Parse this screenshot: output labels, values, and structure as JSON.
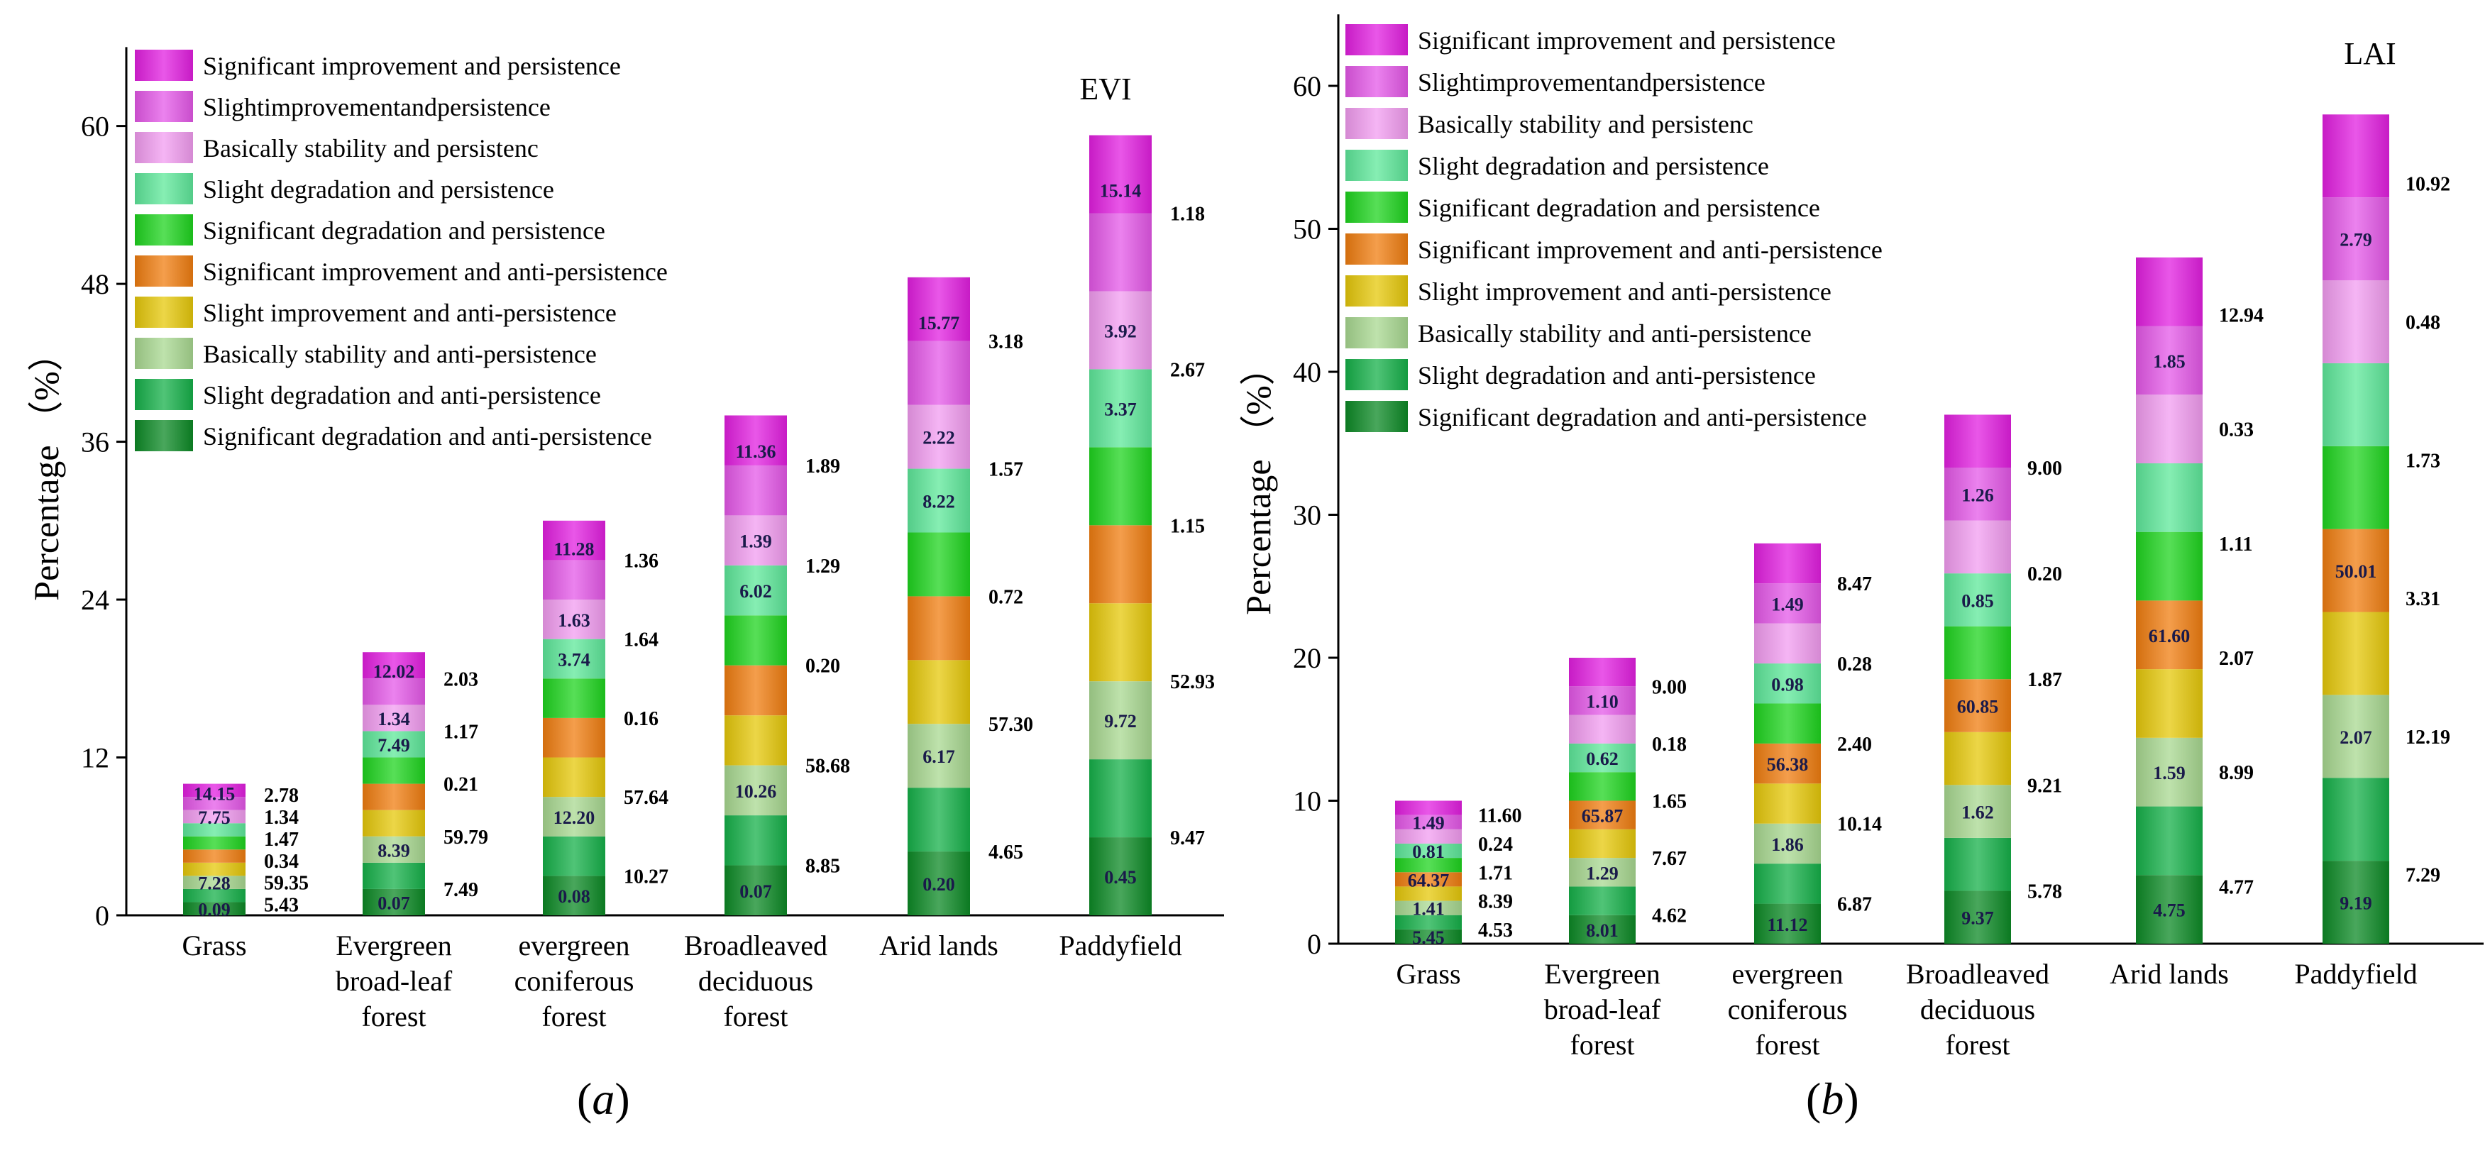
{
  "panels": [
    {
      "letter": "a",
      "paren_open": "(",
      "paren_close": ")"
    },
    {
      "letter": "b",
      "paren_open": "(",
      "paren_close": ")"
    }
  ],
  "colors": [
    "#e21fe0",
    "#e458e8",
    "#f29cf0",
    "#5ee89a",
    "#1fd41f",
    "#f07d10",
    "#e6c80a",
    "#a8d890",
    "#16b049",
    "#0c8a25"
  ],
  "chart_data": [
    {
      "type": "bar",
      "stacked": true,
      "title": "EVI",
      "ylabel": "Percentage （%）",
      "ylim": [
        0,
        66
      ],
      "yticks": [
        "0",
        "12",
        "24",
        "36",
        "48",
        "60"
      ],
      "categories": [
        [
          "Grass"
        ],
        [
          "Evergreen",
          "broad-leaf",
          "forest"
        ],
        [
          "evergreen",
          "coniferous",
          "forest"
        ],
        [
          "Broadleaved",
          "deciduous",
          "forest"
        ],
        [
          "Arid lands"
        ],
        [
          "Paddyfield"
        ]
      ],
      "legend": [
        "Significant improvement and persistence",
        "Slightimprovementandpersistence",
        "Basically stability and persistenc",
        "Slight degradation and persistence",
        "Significant degradation and persistence",
        "Significant improvement and anti-persistence",
        "Slight improvement and anti-persistence",
        "Basically stability and anti-persistence",
        "Slight degradation and anti-persistence",
        "Significant degradation and anti-persistence"
      ],
      "bars": [
        {
          "inside": [
            [
              "0.09"
            ],
            [
              "7.28"
            ],
            [],
            [],
            [
              "7.75"
            ],
            [
              "14.15"
            ]
          ],
          "outside": [
            "5.43",
            "59.35",
            "0.34",
            "1.47",
            "1.34",
            "2.78"
          ]
        },
        {
          "inside": [
            [
              "0.07"
            ],
            [
              "8.39"
            ],
            [],
            [
              "7.49"
            ],
            [
              "1.34"
            ],
            [
              "12.02"
            ]
          ],
          "outside": [
            "7.49",
            "59.79",
            "0.21",
            "1.17",
            "2.03"
          ]
        },
        {
          "inside": [
            [
              "0.08"
            ],
            [
              "12.20"
            ],
            [],
            [
              "3.74"
            ],
            [
              "1.63"
            ],
            [
              "11.28"
            ]
          ],
          "outside": [
            "10.27",
            "57.64",
            "0.16",
            "1.64",
            "1.36"
          ]
        },
        {
          "inside": [
            [
              "0.07"
            ],
            [
              "10.26"
            ],
            [],
            [
              "6.02"
            ],
            [
              "1.39"
            ],
            [
              "11.36"
            ]
          ],
          "outside": [
            "8.85",
            "58.68",
            "0.20",
            "1.29",
            "1.89"
          ]
        },
        {
          "inside": [
            [
              "0.20"
            ],
            [
              "6.17"
            ],
            [],
            [
              "8.22"
            ],
            [
              "2.22"
            ],
            [
              "15.77"
            ]
          ],
          "outside": [
            "4.65",
            "57.30",
            "0.72",
            "1.57",
            "3.18"
          ]
        },
        {
          "inside": [
            [
              "0.45"
            ],
            [
              "9.72"
            ],
            [],
            [
              "3.37"
            ],
            [
              "3.92"
            ],
            [
              "15.14"
            ]
          ],
          "outside": [
            "9.47",
            "52.93",
            "1.15",
            "2.67",
            "1.18"
          ]
        }
      ]
    },
    {
      "type": "bar",
      "stacked": true,
      "title": "LAI",
      "ylabel": "Percentage （%）",
      "ylim": [
        0,
        65
      ],
      "yticks": [
        "0",
        "10",
        "20",
        "30",
        "40",
        "50",
        "60"
      ],
      "categories": [
        [
          "Grass"
        ],
        [
          "Evergreen",
          "broad-leaf",
          "forest"
        ],
        [
          "evergreen",
          "coniferous",
          "forest"
        ],
        [
          "Broadleaved",
          "deciduous",
          "forest"
        ],
        [
          "Arid lands"
        ],
        [
          "Paddyfield"
        ]
      ],
      "legend": [
        "Significant improvement and persistence",
        "Slightimprovementandpersistence",
        "Basically stability and persistenc",
        "Slight degradation and persistence",
        "Significant degradation and persistence",
        "Significant improvement and anti-persistence",
        "Slight improvement and anti-persistence",
        "Basically stability and anti-persistence",
        "Slight degradation and anti-persistence",
        "Significant degradation and anti-persistence"
      ],
      "bars": [
        {
          "inside": [
            [
              "5.45"
            ],
            [
              "1.41"
            ],
            [
              "64.37"
            ],
            [
              "0.81"
            ],
            [
              "1.49"
            ]
          ],
          "outside": [
            "4.53",
            "8.39",
            "1.71",
            "0.24",
            "11.60"
          ]
        },
        {
          "inside": [
            [
              "8.01"
            ],
            [
              "1.29"
            ],
            [
              "65.87"
            ],
            [
              "0.62"
            ],
            [
              "1.10"
            ]
          ],
          "outside": [
            "4.62",
            "7.67",
            "1.65",
            "0.18",
            "9.00"
          ]
        },
        {
          "inside": [
            [
              "11.12"
            ],
            [
              "1.86"
            ],
            [
              "56.38"
            ],
            [
              "0.98"
            ],
            [
              "1.49"
            ]
          ],
          "outside": [
            "6.87",
            "10.14",
            "2.40",
            "0.28",
            "8.47"
          ]
        },
        {
          "inside": [
            [
              "9.37"
            ],
            [
              "1.62"
            ],
            [
              "60.85"
            ],
            [
              "0.85"
            ],
            [
              "1.26"
            ]
          ],
          "outside": [
            "5.78",
            "9.21",
            "1.87",
            "0.20",
            "9.00"
          ]
        },
        {
          "inside": [
            [
              "4.75"
            ],
            [
              "1.59"
            ],
            [
              "61.60"
            ],
            [],
            [
              "1.85"
            ]
          ],
          "outside": [
            "4.77",
            "8.99",
            "2.07",
            "1.11",
            "0.33",
            "12.94"
          ]
        },
        {
          "inside": [
            [
              "9.19"
            ],
            [
              "2.07"
            ],
            [
              "50.01"
            ],
            [],
            [
              "2.79"
            ]
          ],
          "outside": [
            "7.29",
            "12.19",
            "3.31",
            "1.73",
            "0.48",
            "10.92"
          ]
        }
      ]
    }
  ]
}
